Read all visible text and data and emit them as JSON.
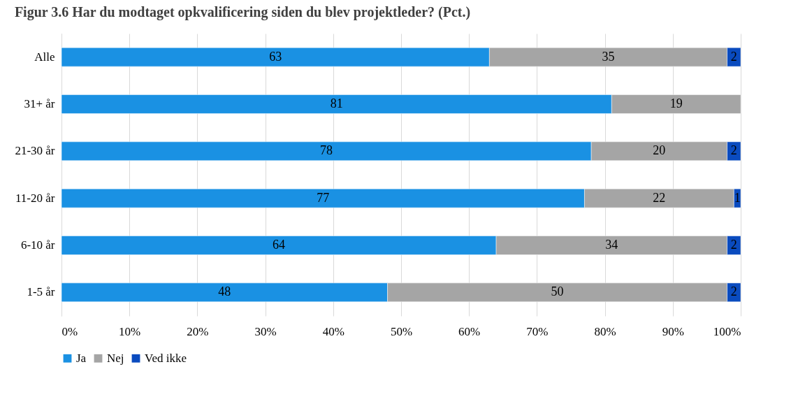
{
  "chart_data": {
    "type": "bar",
    "orientation": "horizontal",
    "stacked": true,
    "title": "Figur 3.6 Har du modtaget opkvalificering siden du blev projektleder? (Pct.)",
    "categories": [
      "Alle",
      "31+ år",
      "21-30 år",
      "11-20 år",
      "6-10 år",
      "1-5 år"
    ],
    "series": [
      {
        "name": "Ja",
        "color": "#1a91e3",
        "values": [
          63,
          81,
          78,
          77,
          64,
          48
        ]
      },
      {
        "name": "Nej",
        "color": "#a5a5a5",
        "values": [
          35,
          19,
          20,
          22,
          34,
          50
        ]
      },
      {
        "name": "Ved ikke",
        "color": "#0a4bbf",
        "values": [
          2,
          null,
          2,
          1,
          2,
          2
        ]
      }
    ],
    "xlim": [
      0,
      100
    ],
    "xticks": [
      {
        "value": 0,
        "label": "0%"
      },
      {
        "value": 10,
        "label": "10%"
      },
      {
        "value": 20,
        "label": "20%"
      },
      {
        "value": 30,
        "label": "30%"
      },
      {
        "value": 40,
        "label": "40%"
      },
      {
        "value": 50,
        "label": "50%"
      },
      {
        "value": 60,
        "label": "60%"
      },
      {
        "value": 70,
        "label": "70%"
      },
      {
        "value": 80,
        "label": "80%"
      },
      {
        "value": 90,
        "label": "90%"
      },
      {
        "value": 100,
        "label": "100%"
      }
    ],
    "grid": "x",
    "legend": "bottom",
    "data_labels": true
  }
}
